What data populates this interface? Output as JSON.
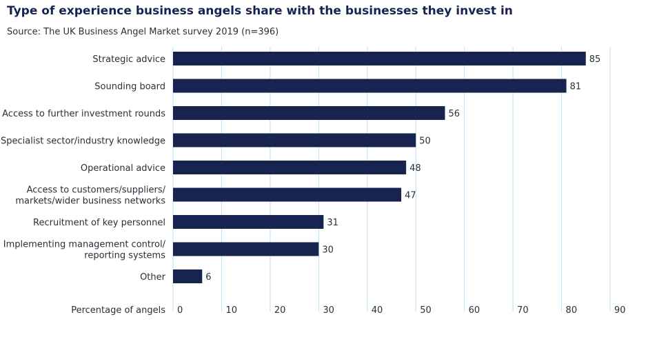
{
  "title": "Type of experience business angels share with the businesses they invest in",
  "subtitle": "Source: The UK Business Angel Market survey 2019 (n=396)",
  "chart_data": {
    "type": "bar",
    "orientation": "horizontal",
    "categories": [
      [
        "Strategic advice"
      ],
      [
        "Sounding board"
      ],
      [
        "Access to further investment rounds"
      ],
      [
        "Specialist sector/industry knowledge"
      ],
      [
        "Operational advice"
      ],
      [
        "Access to customers/suppliers/",
        "markets/wider business networks"
      ],
      [
        "Recruitment of key personnel"
      ],
      [
        "Implementing management control/",
        "reporting systems"
      ],
      [
        "Other"
      ]
    ],
    "values": [
      85,
      81,
      56,
      50,
      48,
      47,
      31,
      30,
      6
    ],
    "xlabel": "Percentage of angels",
    "xlim": [
      0,
      90
    ],
    "xticks": [
      0,
      10,
      20,
      30,
      40,
      50,
      60,
      70,
      80,
      90
    ],
    "grid": true,
    "bar_color": "#172450",
    "grid_color": "#b9dff5"
  }
}
